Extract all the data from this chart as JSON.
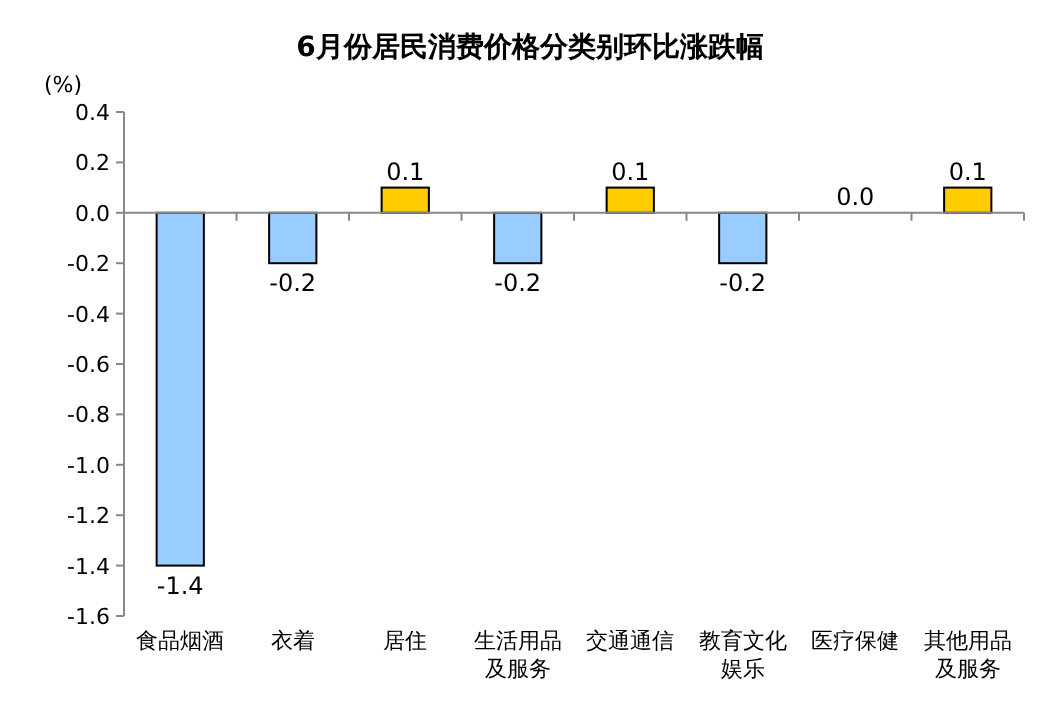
{
  "chart_data": {
    "type": "bar",
    "title": "6月份居民消费价格分类别环比涨跌幅",
    "ylabel": "(%)",
    "categories": [
      "食品烟酒",
      "衣着",
      "居住",
      "生活用品及服务",
      "交通通信",
      "教育文化娱乐",
      "医疗保健",
      "其他用品及服务"
    ],
    "values": [
      -1.4,
      -0.2,
      0.1,
      -0.2,
      0.1,
      -0.2,
      0.0,
      0.1
    ],
    "colors": [
      "#99ccff",
      "#99ccff",
      "#ffcc00",
      "#99ccff",
      "#ffcc00",
      "#99ccff",
      "#ffcc00",
      "#ffcc00"
    ],
    "value_labels": [
      "-1.4",
      "-0.2",
      "0.1",
      "-0.2",
      "0.1",
      "-0.2",
      "0.0",
      "0.1"
    ],
    "ylim": [
      -1.6,
      0.4
    ],
    "yticks": [
      0.4,
      0.2,
      {
        "value": 0,
        "label": "0.0"
      },
      -0.2,
      -0.4,
      -0.6,
      -0.8,
      {
        "value": -1,
        "label": "-1.0"
      },
      -1.2,
      -1.4,
      -1.6
    ]
  }
}
